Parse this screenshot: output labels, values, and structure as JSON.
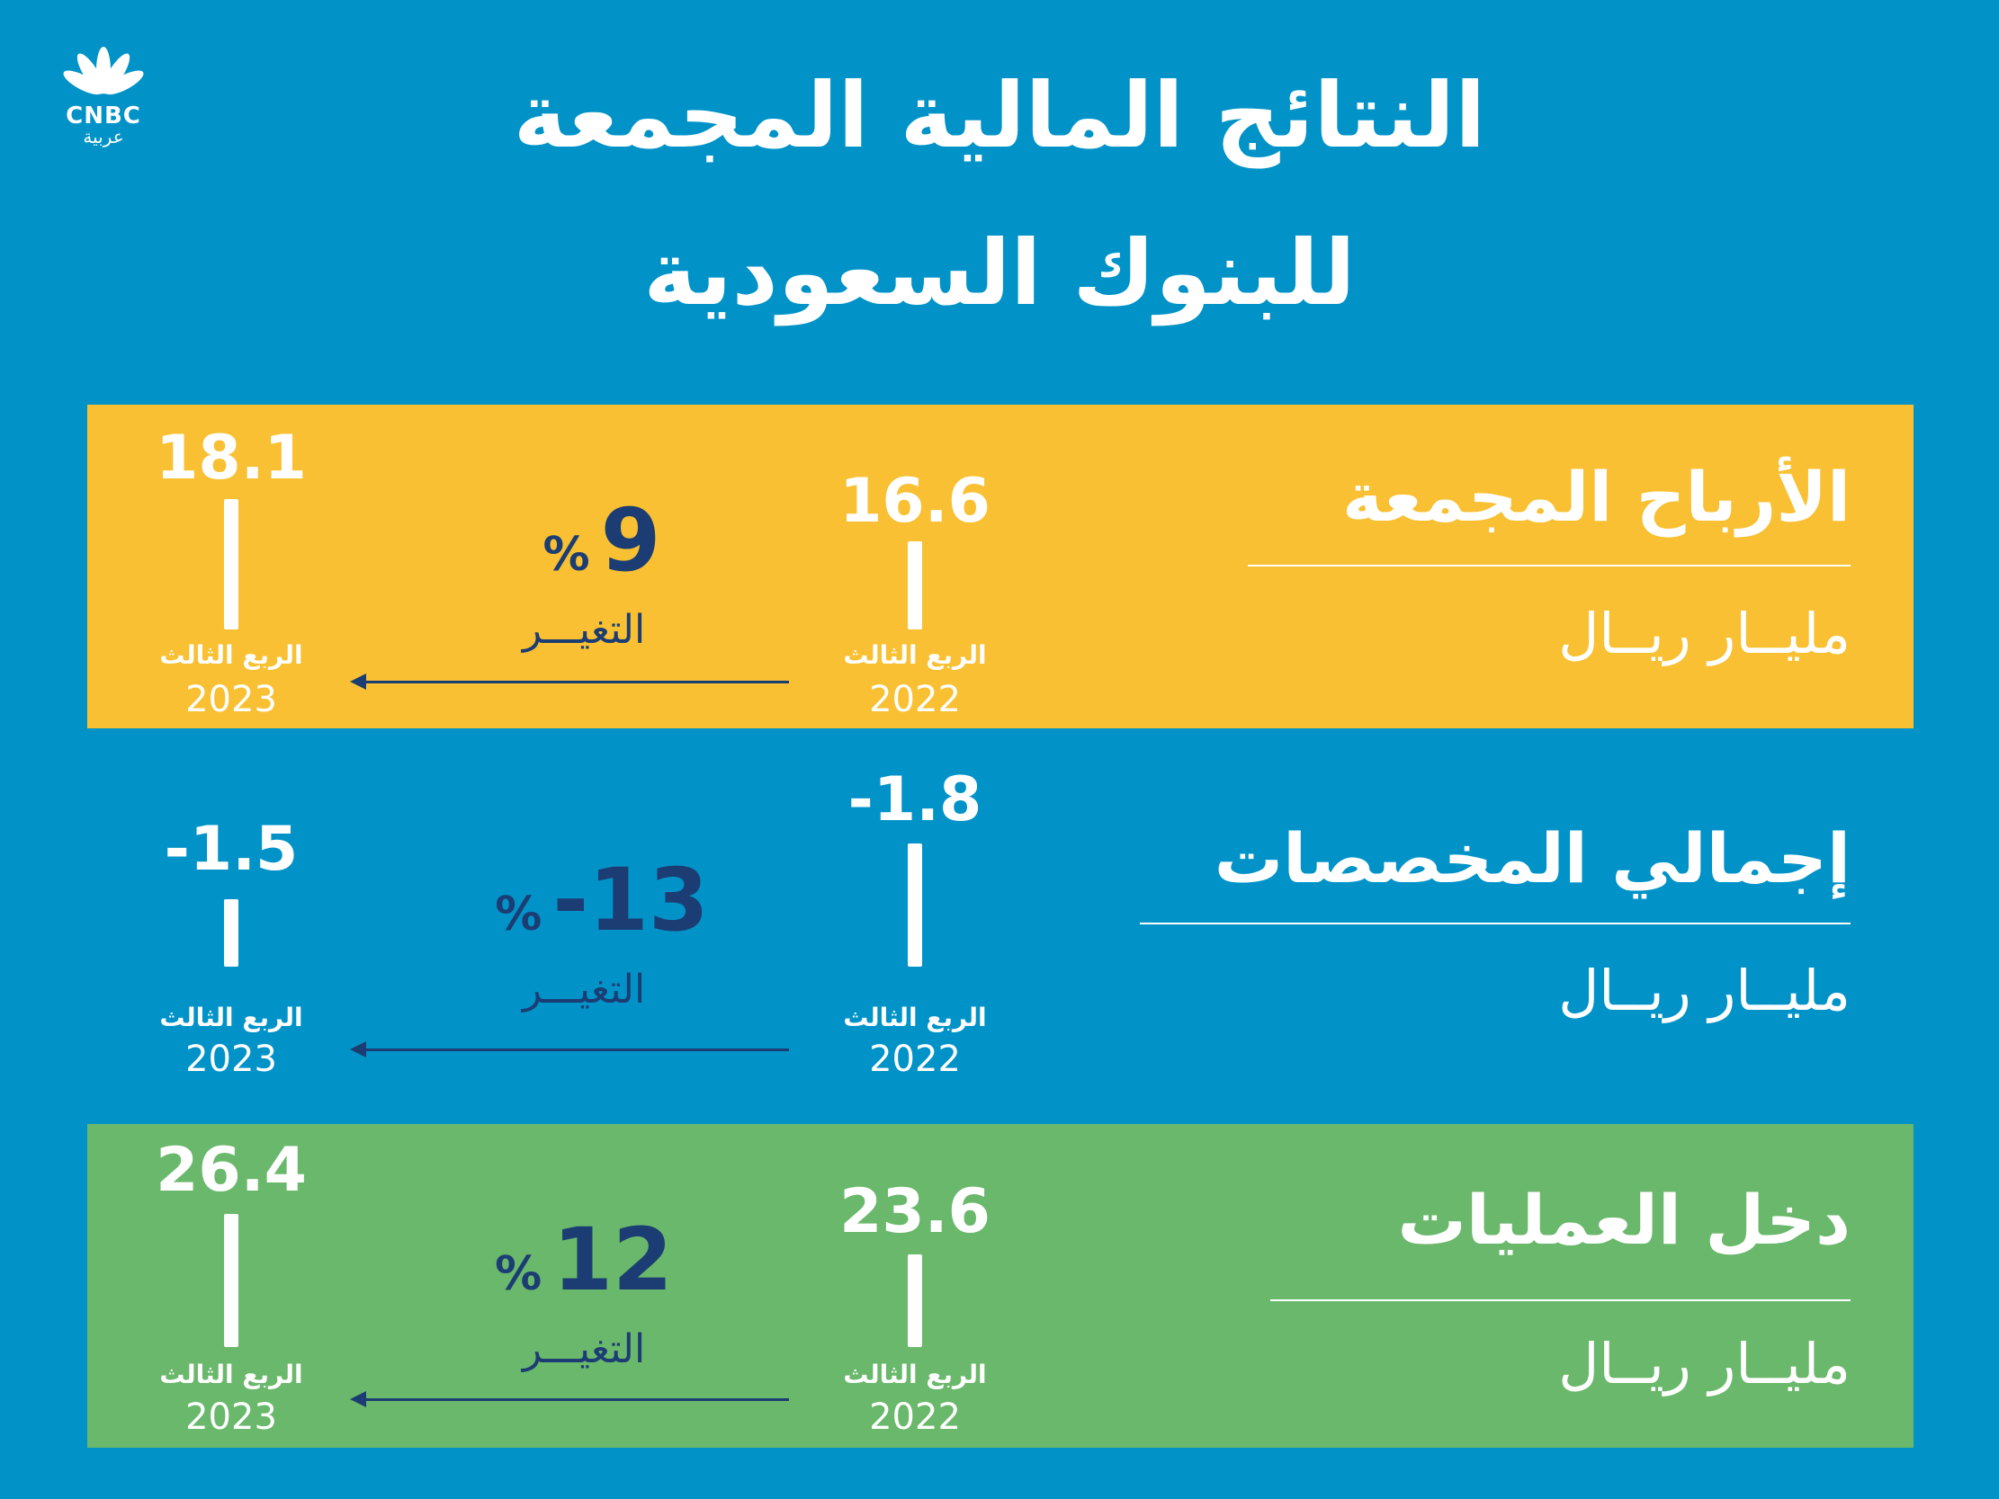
{
  "brand": {
    "logo_text": "CNBC",
    "logo_sub": "عربية"
  },
  "title_line1": "النتائج المالية المجمعة",
  "title_line2": "للبنوك السعودية",
  "colors": {
    "background": "#0193c8",
    "panel_yellow": "#f8c032",
    "panel_green": "#6ab86b",
    "accent_dark": "#1c3d73"
  },
  "metrics": [
    {
      "title": "الأرباح المجمعة",
      "unit": "مليــار ريــال",
      "left_value": "18.1",
      "right_value": "16.6",
      "left_period": "الربع الثالث",
      "left_year": "2023",
      "right_period": "الربع الثالث",
      "right_year": "2022",
      "change_value": "9",
      "change_sign": "%",
      "change_label": "التغيـــر"
    },
    {
      "title": "إجمالي المخصصات",
      "unit": "مليــار ريــال",
      "left_value": "-1.5",
      "right_value": "-1.8",
      "left_period": "الربع الثالث",
      "left_year": "2023",
      "right_period": "الربع الثالث",
      "right_year": "2022",
      "change_value": "-13",
      "change_sign": "%",
      "change_label": "التغيـــر"
    },
    {
      "title": "دخل العمليات",
      "unit": "مليــار ريــال",
      "left_value": "26.4",
      "right_value": "23.6",
      "left_period": "الربع الثالث",
      "left_year": "2023",
      "right_period": "الربع الثالث",
      "right_year": "2022",
      "change_value": "12",
      "change_sign": "%",
      "change_label": "التغيـــر"
    }
  ],
  "chart_data": [
    {
      "type": "bar",
      "title": "الأرباح المجمعة",
      "ylabel": "مليــار ريــال",
      "categories": [
        "الربع الثالث 2022",
        "الربع الثالث 2023"
      ],
      "values": [
        16.6,
        18.1
      ],
      "change_percent": 9
    },
    {
      "type": "bar",
      "title": "إجمالي المخصصات",
      "ylabel": "مليــار ريــال",
      "categories": [
        "الربع الثالث 2022",
        "الربع الثالث 2023"
      ],
      "values": [
        -1.8,
        -1.5
      ],
      "change_percent": -13
    },
    {
      "type": "bar",
      "title": "دخل العمليات",
      "ylabel": "مليــار ريــال",
      "categories": [
        "الربع الثالث 2022",
        "الربع الثالث 2023"
      ],
      "values": [
        23.6,
        26.4
      ],
      "change_percent": 12
    }
  ]
}
